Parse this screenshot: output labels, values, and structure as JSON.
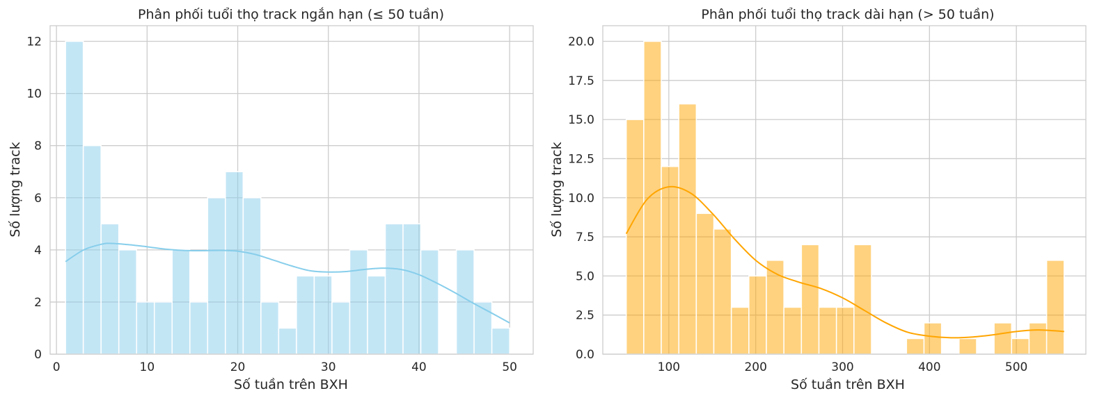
{
  "chart_data": [
    {
      "type": "histogram",
      "title": "Phân phối tuổi thọ track ngắn hạn (≤ 50 tuần)",
      "xlabel": "Số tuần trên BXH",
      "ylabel": "Số lượng track",
      "xlim": [
        -0.7,
        52.6
      ],
      "ylim": [
        0,
        12.6
      ],
      "xticks": [
        0,
        10,
        20,
        30,
        40,
        50
      ],
      "yticks": [
        0,
        2,
        4,
        6,
        8,
        10,
        12
      ],
      "grid": true,
      "color": "#87ceeb",
      "bin_start": 1,
      "bin_width": 1.96,
      "counts": [
        12,
        8,
        5,
        4,
        2,
        2,
        4,
        2,
        6,
        7,
        6,
        2,
        1,
        3,
        3,
        2,
        4,
        3,
        5,
        5,
        4,
        0,
        4,
        2,
        1
      ],
      "kde": {
        "x": [
          1,
          3,
          5,
          6,
          8,
          10,
          12,
          14,
          16,
          18,
          20,
          22,
          24,
          26,
          28,
          30,
          32,
          34,
          36,
          38,
          40,
          42,
          44,
          46,
          48,
          50
        ],
        "y": [
          3.55,
          4.0,
          4.22,
          4.25,
          4.2,
          4.12,
          4.03,
          3.98,
          3.97,
          3.98,
          3.95,
          3.82,
          3.6,
          3.38,
          3.2,
          3.15,
          3.17,
          3.25,
          3.3,
          3.25,
          3.05,
          2.72,
          2.35,
          1.95,
          1.58,
          1.2
        ]
      }
    },
    {
      "type": "histogram",
      "title": "Phân phối tuổi thọ track dài hạn (> 50 tuần)",
      "xlabel": "Số tuần trên BXH",
      "ylabel": "Số lượng track",
      "xlim": [
        24,
        580
      ],
      "ylim": [
        0,
        21
      ],
      "xticks": [
        100,
        200,
        300,
        400,
        500
      ],
      "yticks": [
        0.0,
        2.5,
        5.0,
        7.5,
        10.0,
        12.5,
        15.0,
        17.5,
        20.0
      ],
      "ytick_labels": [
        "0.0",
        "2.5",
        "5.0",
        "7.5",
        "10.0",
        "12.5",
        "15.0",
        "17.5",
        "20.0"
      ],
      "grid": true,
      "color": "#ffa500",
      "bin_start": 51,
      "bin_width": 20.16,
      "counts": [
        15,
        20,
        12,
        16,
        9,
        8,
        3,
        5,
        6,
        3,
        7,
        3,
        3,
        7,
        0,
        0,
        1,
        2,
        0,
        1,
        0,
        2,
        1,
        2,
        6
      ],
      "kde": {
        "x": [
          51,
          75,
          100,
          125,
          150,
          175,
          200,
          225,
          250,
          275,
          300,
          325,
          350,
          375,
          400,
          425,
          450,
          475,
          500,
          525,
          555
        ],
        "y": [
          7.7,
          9.9,
          10.7,
          10.3,
          9.0,
          7.4,
          6.0,
          5.1,
          4.6,
          4.2,
          3.6,
          2.8,
          2.0,
          1.4,
          1.15,
          1.05,
          1.1,
          1.25,
          1.45,
          1.55,
          1.45
        ]
      }
    }
  ]
}
